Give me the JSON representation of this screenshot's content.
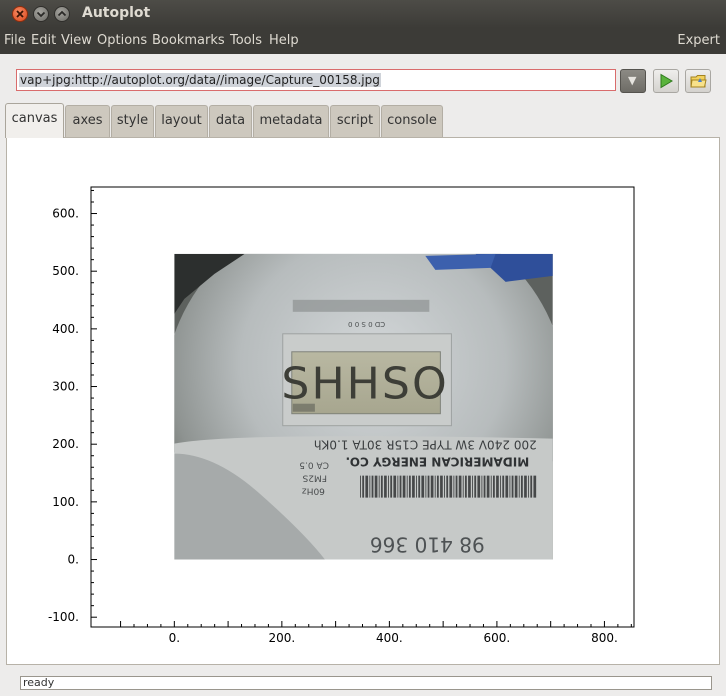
{
  "window": {
    "title": "Autoplot"
  },
  "menu": {
    "items": [
      "File",
      "Edit",
      "View",
      "Options",
      "Bookmarks",
      "Tools",
      "Help"
    ],
    "expert_label": "Expert"
  },
  "address": {
    "value": "vap+jpg:http://autoplot.org/data//image/Capture_00158.jpg"
  },
  "tabs": [
    "canvas",
    "axes",
    "style",
    "layout",
    "data",
    "metadata",
    "script",
    "console"
  ],
  "active_tab": "canvas",
  "plot": {
    "x_ticks": [
      "0.",
      "200.",
      "400.",
      "600.",
      "800."
    ],
    "y_ticks": [
      "600.",
      "500.",
      "400.",
      "300.",
      "200.",
      "100.",
      "0.",
      "-100."
    ],
    "xlim": [
      -155,
      855
    ],
    "ylim": [
      -117,
      646
    ],
    "image_extent": {
      "x": [
        0,
        704
      ],
      "y": [
        0,
        530
      ]
    },
    "image_content": {
      "meter_display": "SHHSO",
      "label_line1": "200 240V 3W TYPE C15R 30TA 1.0Kh",
      "label_line2": "MIDAMERICAN ENERGY CO.",
      "small_labels": [
        "CA 0.5",
        "FM2S",
        "60Hz"
      ],
      "serial": "98 410 366"
    }
  },
  "status": {
    "text": "ready"
  },
  "colors": {
    "titlebar": "#3c3b37",
    "tab_inactive": "#cdc8be",
    "url_border": "#d96c6c"
  }
}
